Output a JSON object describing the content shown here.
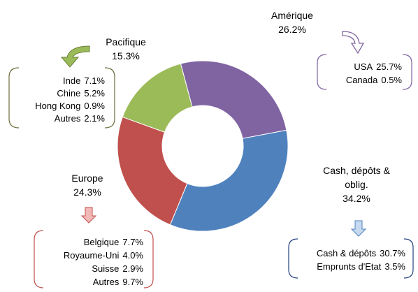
{
  "chart_data": {
    "type": "donut",
    "categories": [
      "Amérique",
      "Cash, dépôts & oblig.",
      "Europe",
      "Pacifique"
    ],
    "values": [
      26.2,
      34.2,
      24.3,
      15.3
    ],
    "value_labels": [
      "26.2%",
      "34.2%",
      "24.3%",
      "15.3%"
    ],
    "colors": [
      "#8064a2",
      "#4f81bd",
      "#c0504d",
      "#9bbb59"
    ],
    "breakdowns": [
      {
        "items": [
          "USA",
          "Canada"
        ],
        "values": [
          25.7,
          0.5
        ],
        "value_labels": [
          "25.7%",
          "0.5%"
        ]
      },
      {
        "items": [
          "Cash & dépôts",
          "Emprunts d'Etat"
        ],
        "values": [
          30.7,
          3.5
        ],
        "value_labels": [
          "30.7%",
          "3.5%"
        ]
      },
      {
        "items": [
          "Belgique",
          "Royaume-Uni",
          "Suisse",
          "Autres"
        ],
        "values": [
          7.7,
          4.0,
          2.9,
          9.7
        ],
        "value_labels": [
          "7.7%",
          "4.0%",
          "2.9%",
          "9.7%"
        ]
      },
      {
        "items": [
          "Inde",
          "Chine",
          "Hong Kong",
          "Autres"
        ],
        "values": [
          7.1,
          5.2,
          0.9,
          2.1
        ],
        "value_labels": [
          "7.1%",
          "5.2%",
          "0.9%",
          "2.1%"
        ]
      }
    ]
  }
}
